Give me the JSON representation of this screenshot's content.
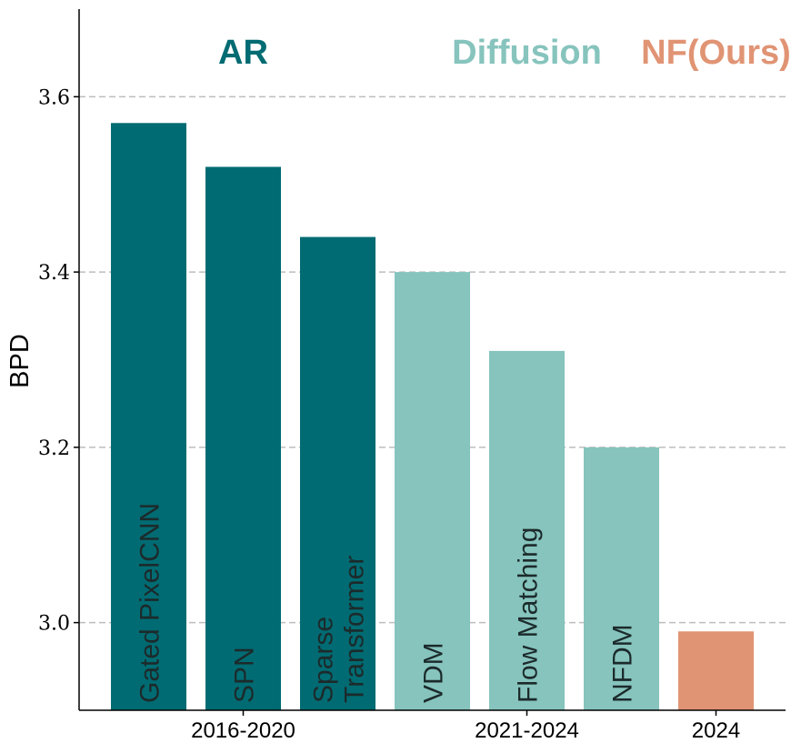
{
  "chart_data": {
    "type": "bar",
    "ylabel": "BPD",
    "ylim": [
      2.9,
      3.7
    ],
    "yticks": [
      3.0,
      3.2,
      3.4,
      3.6
    ],
    "ytick_labels": [
      "3.0",
      "3.2",
      "3.4",
      "3.6"
    ],
    "grid": "horizontal dashed at y ticks",
    "bars": [
      {
        "label": "Gated PixelCNN",
        "value": 3.57,
        "group": "AR"
      },
      {
        "label": "SPN",
        "value": 3.52,
        "group": "AR"
      },
      {
        "label": "Sparse\nTransformer",
        "value": 3.44,
        "group": "AR"
      },
      {
        "label": "VDM",
        "value": 3.4,
        "group": "Diffusion"
      },
      {
        "label": "Flow Matching",
        "value": 3.31,
        "group": "Diffusion"
      },
      {
        "label": "NFDM",
        "value": 3.2,
        "group": "Diffusion"
      },
      {
        "label": "",
        "value": 2.99,
        "group": "NF(Ours)"
      }
    ],
    "groups": [
      {
        "name": "AR",
        "period": "2016-2020",
        "color": "#006b72"
      },
      {
        "name": "Diffusion",
        "period": "2021-2024",
        "color": "#86c4bd"
      },
      {
        "name": "NF(Ours)",
        "period": "2024",
        "color": "#e09474"
      }
    ]
  }
}
